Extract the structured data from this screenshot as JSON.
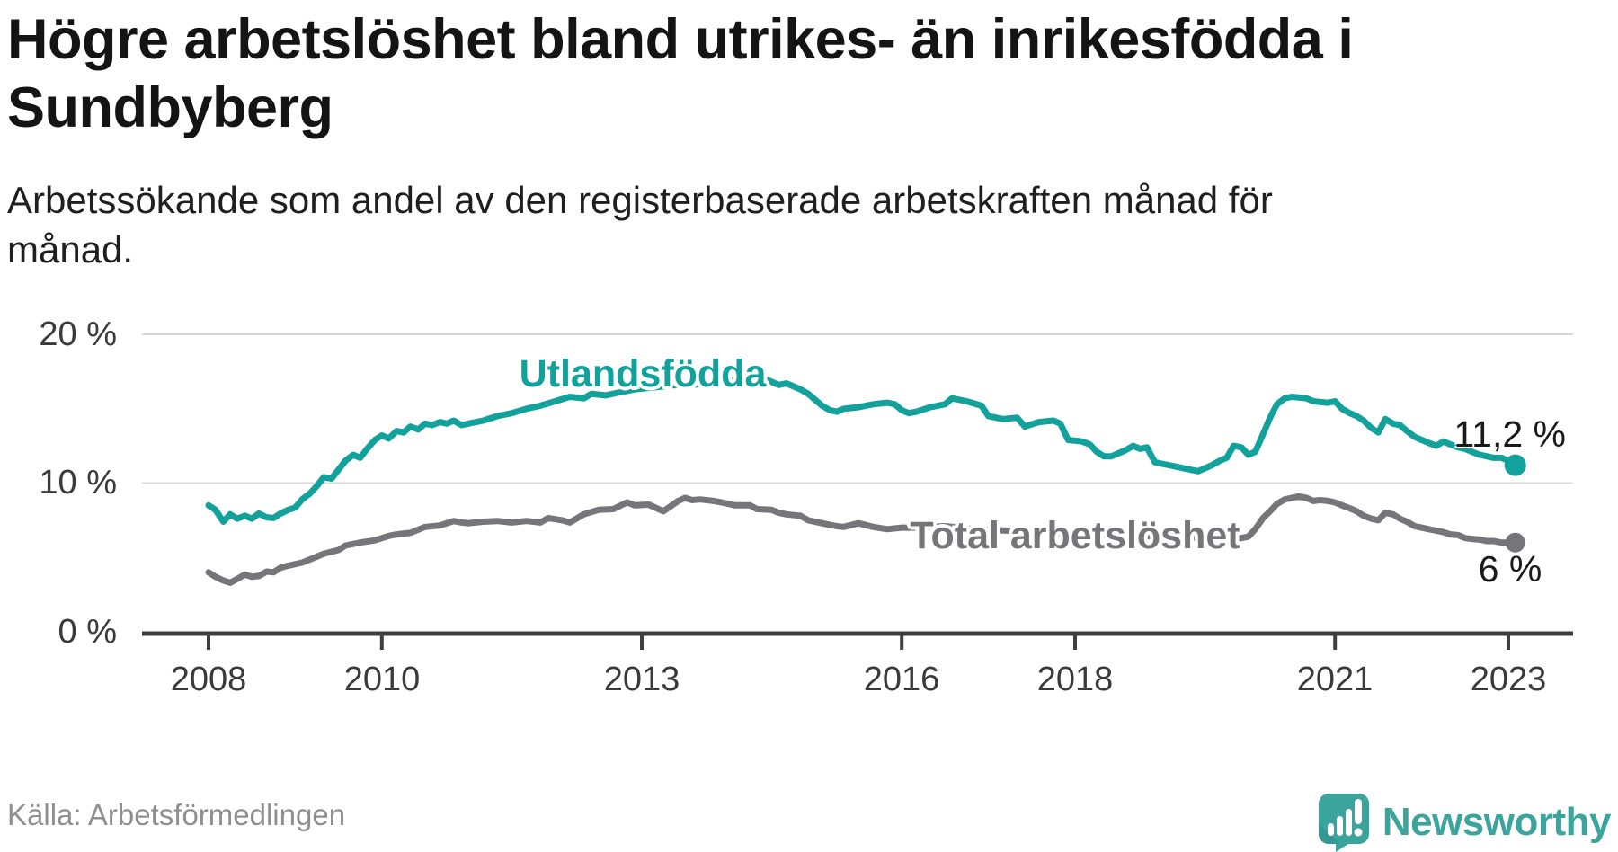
{
  "header": {
    "title_lines": [
      "Högre arbetslöshet bland utrikes- än inrikesfödda i",
      "Sundbyberg"
    ],
    "subtitle_lines": [
      "Arbetssökande som andel av den registerbaserade arbetskraften månad för",
      "månad."
    ]
  },
  "chart_data": {
    "type": "line",
    "title": "Högre arbetslöshet bland utrikes- än inrikesfödda i Sundbyberg",
    "subtitle": "Arbetssökande som andel av den registerbaserade arbetskraften månad för månad.",
    "unit": "%",
    "x_range": [
      2008.0,
      2023.4
    ],
    "ylim": [
      0,
      20.6
    ],
    "grid": "horizontal-only",
    "legend_position": "inline-labels",
    "x_axis": {
      "ticks": [
        {
          "year": 2008,
          "label": "2008"
        },
        {
          "year": 2010,
          "label": "2010"
        },
        {
          "year": 2013,
          "label": "2013"
        },
        {
          "year": 2016,
          "label": "2016"
        },
        {
          "year": 2018,
          "label": "2018"
        },
        {
          "year": 2021,
          "label": "2021"
        },
        {
          "year": 2023,
          "label": "2023"
        }
      ]
    },
    "y_axis": {
      "ticks": [
        {
          "value": 0,
          "label": "0 %"
        },
        {
          "value": 10,
          "label": "10 %"
        },
        {
          "value": 20,
          "label": "20 %"
        }
      ]
    },
    "series": [
      {
        "name": "Utlandsfödda",
        "color": "#13a29b",
        "end_label": "11,2 %",
        "end_value": 11.2,
        "points": [
          [
            2008.0,
            8.5
          ],
          [
            2008.08,
            8.2
          ],
          [
            2008.17,
            7.4
          ],
          [
            2008.25,
            7.9
          ],
          [
            2008.33,
            7.6
          ],
          [
            2008.42,
            7.8
          ],
          [
            2008.5,
            7.6
          ],
          [
            2008.58,
            7.95
          ],
          [
            2008.67,
            7.7
          ],
          [
            2008.75,
            7.65
          ],
          [
            2008.83,
            7.95
          ],
          [
            2008.92,
            8.2
          ],
          [
            2009.0,
            8.35
          ],
          [
            2009.08,
            8.9
          ],
          [
            2009.17,
            9.3
          ],
          [
            2009.25,
            9.8
          ],
          [
            2009.33,
            10.4
          ],
          [
            2009.42,
            10.3
          ],
          [
            2009.5,
            10.9
          ],
          [
            2009.58,
            11.5
          ],
          [
            2009.67,
            11.9
          ],
          [
            2009.75,
            11.7
          ],
          [
            2009.83,
            12.3
          ],
          [
            2009.92,
            12.9
          ],
          [
            2010.0,
            13.2
          ],
          [
            2010.08,
            13.0
          ],
          [
            2010.17,
            13.5
          ],
          [
            2010.25,
            13.4
          ],
          [
            2010.33,
            13.8
          ],
          [
            2010.42,
            13.6
          ],
          [
            2010.5,
            14.0
          ],
          [
            2010.58,
            13.9
          ],
          [
            2010.67,
            14.1
          ],
          [
            2010.75,
            14.0
          ],
          [
            2010.83,
            14.2
          ],
          [
            2010.92,
            13.9
          ],
          [
            2011.0,
            14.0
          ],
          [
            2011.17,
            14.2
          ],
          [
            2011.33,
            14.5
          ],
          [
            2011.5,
            14.7
          ],
          [
            2011.67,
            15.0
          ],
          [
            2011.83,
            15.2
          ],
          [
            2012.0,
            15.5
          ],
          [
            2012.17,
            15.8
          ],
          [
            2012.33,
            15.7
          ],
          [
            2012.42,
            16.0
          ],
          [
            2012.58,
            15.9
          ],
          [
            2012.75,
            16.1
          ],
          [
            2012.92,
            16.3
          ],
          [
            2013.08,
            16.4
          ],
          [
            2013.25,
            16.5
          ],
          [
            2013.42,
            16.6
          ],
          [
            2013.58,
            16.6
          ],
          [
            2013.75,
            16.7
          ],
          [
            2013.92,
            16.8
          ],
          [
            2014.08,
            16.9
          ],
          [
            2014.25,
            16.9
          ],
          [
            2014.42,
            17.0
          ],
          [
            2014.5,
            16.8
          ],
          [
            2014.58,
            16.6
          ],
          [
            2014.67,
            16.7
          ],
          [
            2014.75,
            16.5
          ],
          [
            2014.83,
            16.3
          ],
          [
            2014.92,
            16.0
          ],
          [
            2015.0,
            15.6
          ],
          [
            2015.08,
            15.2
          ],
          [
            2015.17,
            14.9
          ],
          [
            2015.25,
            14.8
          ],
          [
            2015.33,
            15.0
          ],
          [
            2015.5,
            15.1
          ],
          [
            2015.67,
            15.3
          ],
          [
            2015.83,
            15.4
          ],
          [
            2015.92,
            15.3
          ],
          [
            2016.0,
            14.9
          ],
          [
            2016.08,
            14.7
          ],
          [
            2016.17,
            14.8
          ],
          [
            2016.33,
            15.1
          ],
          [
            2016.5,
            15.3
          ],
          [
            2016.58,
            15.7
          ],
          [
            2016.75,
            15.5
          ],
          [
            2016.92,
            15.2
          ],
          [
            2017.0,
            14.5
          ],
          [
            2017.17,
            14.3
          ],
          [
            2017.33,
            14.4
          ],
          [
            2017.42,
            13.8
          ],
          [
            2017.58,
            14.1
          ],
          [
            2017.75,
            14.2
          ],
          [
            2017.83,
            14.0
          ],
          [
            2017.92,
            12.9
          ],
          [
            2018.08,
            12.8
          ],
          [
            2018.17,
            12.6
          ],
          [
            2018.25,
            12.1
          ],
          [
            2018.33,
            11.8
          ],
          [
            2018.42,
            11.8
          ],
          [
            2018.58,
            12.2
          ],
          [
            2018.67,
            12.5
          ],
          [
            2018.75,
            12.3
          ],
          [
            2018.83,
            12.4
          ],
          [
            2018.92,
            11.4
          ],
          [
            2019.0,
            11.3
          ],
          [
            2019.17,
            11.1
          ],
          [
            2019.33,
            10.9
          ],
          [
            2019.42,
            10.8
          ],
          [
            2019.5,
            11.0
          ],
          [
            2019.58,
            11.2
          ],
          [
            2019.67,
            11.5
          ],
          [
            2019.75,
            11.7
          ],
          [
            2019.83,
            12.5
          ],
          [
            2019.92,
            12.4
          ],
          [
            2020.0,
            11.9
          ],
          [
            2020.08,
            12.1
          ],
          [
            2020.17,
            13.3
          ],
          [
            2020.25,
            14.4
          ],
          [
            2020.33,
            15.3
          ],
          [
            2020.42,
            15.7
          ],
          [
            2020.5,
            15.8
          ],
          [
            2020.58,
            15.75
          ],
          [
            2020.67,
            15.7
          ],
          [
            2020.75,
            15.5
          ],
          [
            2020.83,
            15.45
          ],
          [
            2020.92,
            15.4
          ],
          [
            2021.0,
            15.5
          ],
          [
            2021.08,
            15.0
          ],
          [
            2021.17,
            14.7
          ],
          [
            2021.25,
            14.5
          ],
          [
            2021.33,
            14.2
          ],
          [
            2021.42,
            13.7
          ],
          [
            2021.5,
            13.4
          ],
          [
            2021.58,
            14.3
          ],
          [
            2021.67,
            14.0
          ],
          [
            2021.75,
            13.9
          ],
          [
            2021.83,
            13.5
          ],
          [
            2021.92,
            13.1
          ],
          [
            2022.0,
            12.9
          ],
          [
            2022.08,
            12.7
          ],
          [
            2022.17,
            12.5
          ],
          [
            2022.25,
            12.8
          ],
          [
            2022.33,
            12.6
          ],
          [
            2022.42,
            12.4
          ],
          [
            2022.5,
            12.3
          ],
          [
            2022.58,
            12.1
          ],
          [
            2022.67,
            11.9
          ],
          [
            2022.75,
            11.8
          ],
          [
            2022.83,
            11.7
          ],
          [
            2022.92,
            11.7
          ],
          [
            2023.0,
            11.5
          ],
          [
            2023.08,
            11.2
          ]
        ]
      },
      {
        "name": "Total arbetslöshet",
        "color": "#75757a",
        "end_label": "6 %",
        "end_value": 6,
        "points": [
          [
            2008.0,
            4.0
          ],
          [
            2008.08,
            3.7
          ],
          [
            2008.17,
            3.45
          ],
          [
            2008.25,
            3.3
          ],
          [
            2008.33,
            3.55
          ],
          [
            2008.42,
            3.85
          ],
          [
            2008.5,
            3.7
          ],
          [
            2008.58,
            3.75
          ],
          [
            2008.67,
            4.05
          ],
          [
            2008.75,
            4.0
          ],
          [
            2008.83,
            4.3
          ],
          [
            2008.92,
            4.45
          ],
          [
            2009.08,
            4.65
          ],
          [
            2009.25,
            5.05
          ],
          [
            2009.33,
            5.25
          ],
          [
            2009.5,
            5.5
          ],
          [
            2009.58,
            5.8
          ],
          [
            2009.75,
            6.0
          ],
          [
            2009.92,
            6.15
          ],
          [
            2010.08,
            6.45
          ],
          [
            2010.17,
            6.55
          ],
          [
            2010.33,
            6.65
          ],
          [
            2010.5,
            7.05
          ],
          [
            2010.67,
            7.15
          ],
          [
            2010.83,
            7.45
          ],
          [
            2010.92,
            7.35
          ],
          [
            2011.0,
            7.3
          ],
          [
            2011.17,
            7.4
          ],
          [
            2011.33,
            7.45
          ],
          [
            2011.5,
            7.35
          ],
          [
            2011.67,
            7.45
          ],
          [
            2011.83,
            7.35
          ],
          [
            2011.92,
            7.65
          ],
          [
            2012.08,
            7.5
          ],
          [
            2012.17,
            7.35
          ],
          [
            2012.33,
            7.9
          ],
          [
            2012.5,
            8.2
          ],
          [
            2012.67,
            8.25
          ],
          [
            2012.83,
            8.7
          ],
          [
            2012.92,
            8.5
          ],
          [
            2013.08,
            8.55
          ],
          [
            2013.25,
            8.1
          ],
          [
            2013.42,
            8.8
          ],
          [
            2013.5,
            9.0
          ],
          [
            2013.58,
            8.85
          ],
          [
            2013.67,
            8.9
          ],
          [
            2013.83,
            8.8
          ],
          [
            2013.92,
            8.7
          ],
          [
            2014.08,
            8.5
          ],
          [
            2014.25,
            8.5
          ],
          [
            2014.33,
            8.25
          ],
          [
            2014.5,
            8.2
          ],
          [
            2014.58,
            8.0
          ],
          [
            2014.67,
            7.9
          ],
          [
            2014.83,
            7.8
          ],
          [
            2014.92,
            7.5
          ],
          [
            2015.08,
            7.3
          ],
          [
            2015.25,
            7.1
          ],
          [
            2015.33,
            7.05
          ],
          [
            2015.5,
            7.3
          ],
          [
            2015.67,
            7.05
          ],
          [
            2015.83,
            6.9
          ],
          [
            2016.0,
            7.0
          ],
          [
            2016.17,
            7.0
          ],
          [
            2016.33,
            7.05
          ],
          [
            2016.5,
            7.1
          ],
          [
            2016.75,
            6.95
          ],
          [
            2017.0,
            6.85
          ],
          [
            2017.25,
            6.8
          ],
          [
            2017.5,
            6.75
          ],
          [
            2017.75,
            6.65
          ],
          [
            2018.0,
            6.6
          ],
          [
            2018.25,
            6.55
          ],
          [
            2018.5,
            6.5
          ],
          [
            2018.75,
            6.45
          ],
          [
            2019.0,
            6.4
          ],
          [
            2019.25,
            6.35
          ],
          [
            2019.5,
            6.3
          ],
          [
            2019.75,
            6.3
          ],
          [
            2019.92,
            6.3
          ],
          [
            2020.0,
            6.4
          ],
          [
            2020.08,
            6.9
          ],
          [
            2020.17,
            7.65
          ],
          [
            2020.25,
            8.1
          ],
          [
            2020.33,
            8.6
          ],
          [
            2020.42,
            8.9
          ],
          [
            2020.5,
            9.0
          ],
          [
            2020.58,
            9.1
          ],
          [
            2020.67,
            9.0
          ],
          [
            2020.75,
            8.8
          ],
          [
            2020.83,
            8.85
          ],
          [
            2020.92,
            8.8
          ],
          [
            2021.0,
            8.7
          ],
          [
            2021.08,
            8.5
          ],
          [
            2021.17,
            8.3
          ],
          [
            2021.25,
            8.1
          ],
          [
            2021.33,
            7.8
          ],
          [
            2021.42,
            7.6
          ],
          [
            2021.5,
            7.5
          ],
          [
            2021.58,
            8.0
          ],
          [
            2021.67,
            7.9
          ],
          [
            2021.75,
            7.6
          ],
          [
            2021.83,
            7.4
          ],
          [
            2021.92,
            7.1
          ],
          [
            2022.0,
            7.0
          ],
          [
            2022.08,
            6.9
          ],
          [
            2022.17,
            6.8
          ],
          [
            2022.25,
            6.7
          ],
          [
            2022.33,
            6.55
          ],
          [
            2022.42,
            6.5
          ],
          [
            2022.5,
            6.3
          ],
          [
            2022.58,
            6.25
          ],
          [
            2022.67,
            6.2
          ],
          [
            2022.75,
            6.1
          ],
          [
            2022.83,
            6.1
          ],
          [
            2022.92,
            6.0
          ],
          [
            2023.0,
            6.0
          ],
          [
            2023.08,
            6.0
          ]
        ]
      }
    ]
  },
  "footer": {
    "source": "Källa: Arbetsförmedlingen",
    "brand": "Newsworthy"
  },
  "colors": {
    "accent_teal": "#13a29b",
    "series_gray": "#75757a",
    "gridline": "#d8d8d8",
    "axis": "#3f3f3f",
    "logo_teal": "#3ba49d",
    "logo_shade": "#2f8d88"
  }
}
